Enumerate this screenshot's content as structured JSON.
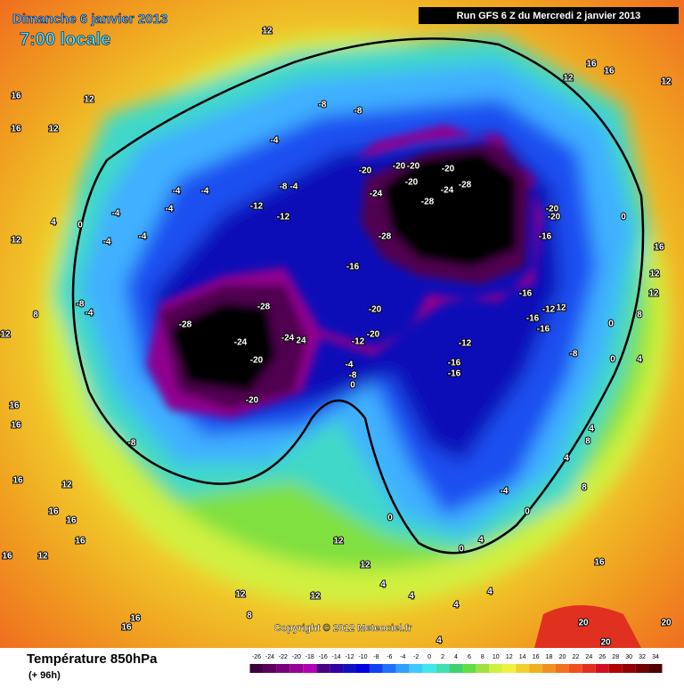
{
  "header": {
    "date": "Dimanche 6 janvier 2013",
    "time": "7:00 locale",
    "run": "Run GFS 6 Z du Mercredi 2 janvier 2013"
  },
  "footer": {
    "title": "Température 850hPa",
    "lead": "(+ 96h)",
    "copyright": "Copyright © 2012 Meteociel.fr"
  },
  "legend": {
    "ticks": [
      -26,
      -24,
      -22,
      -20,
      -18,
      -16,
      -14,
      -12,
      -10,
      -8,
      -6,
      -4,
      -2,
      0,
      2,
      4,
      6,
      8,
      10,
      12,
      14,
      16,
      18,
      20,
      22,
      24,
      26,
      28,
      30,
      32,
      34
    ],
    "colors": [
      "#3c003c",
      "#5a005a",
      "#780078",
      "#960096",
      "#b400b4",
      "#4b0082",
      "#3000a0",
      "#1010c0",
      "#0000e0",
      "#1040f0",
      "#2070ff",
      "#30a0ff",
      "#40c8ff",
      "#40e8e8",
      "#40e0b0",
      "#40d070",
      "#60e040",
      "#a0e040",
      "#d0f040",
      "#f0f040",
      "#f0d030",
      "#f0b020",
      "#f09020",
      "#f07020",
      "#f05020",
      "#e03020",
      "#d01020",
      "#b00000",
      "#900000",
      "#700000",
      "#500000"
    ]
  },
  "map": {
    "contour_labels": [
      "-28",
      "-28",
      "-24",
      "-24",
      "24",
      "-20",
      "-20",
      "-8",
      "-8",
      "-12",
      "-12",
      "-4",
      "-4",
      "-8",
      "-8",
      "-20",
      "-20",
      "-20",
      "-20",
      "-20",
      "-24",
      "-24",
      "-28",
      "-28",
      "-28",
      "-16",
      "-20",
      "-20",
      "-12",
      "-8",
      "-4",
      "0",
      "-16",
      "-16",
      "-12",
      "-16",
      "-16",
      "-16",
      "-20",
      "-20",
      "-12",
      "12",
      "-16",
      "0",
      "0",
      "8",
      "16",
      "12",
      "12",
      "-8",
      "0",
      "4",
      "4",
      "8",
      "4",
      "8",
      "-4",
      "0",
      "0",
      "4",
      "0",
      "12",
      "12",
      "12",
      "12",
      "8",
      "16",
      "16",
      "12",
      "16",
      "16",
      "16",
      "12",
      "16",
      "16",
      "16",
      "16",
      "12",
      "8",
      "12",
      "4",
      "0",
      "-4",
      "-4",
      "-4",
      "-4",
      "-4",
      "-4",
      "-8",
      "-4",
      "12",
      "16",
      "16",
      "12",
      "12",
      "12",
      "16",
      "16",
      "12",
      "16",
      "20",
      "20",
      "20",
      "4",
      "4",
      "4",
      "4",
      "4"
    ]
  }
}
